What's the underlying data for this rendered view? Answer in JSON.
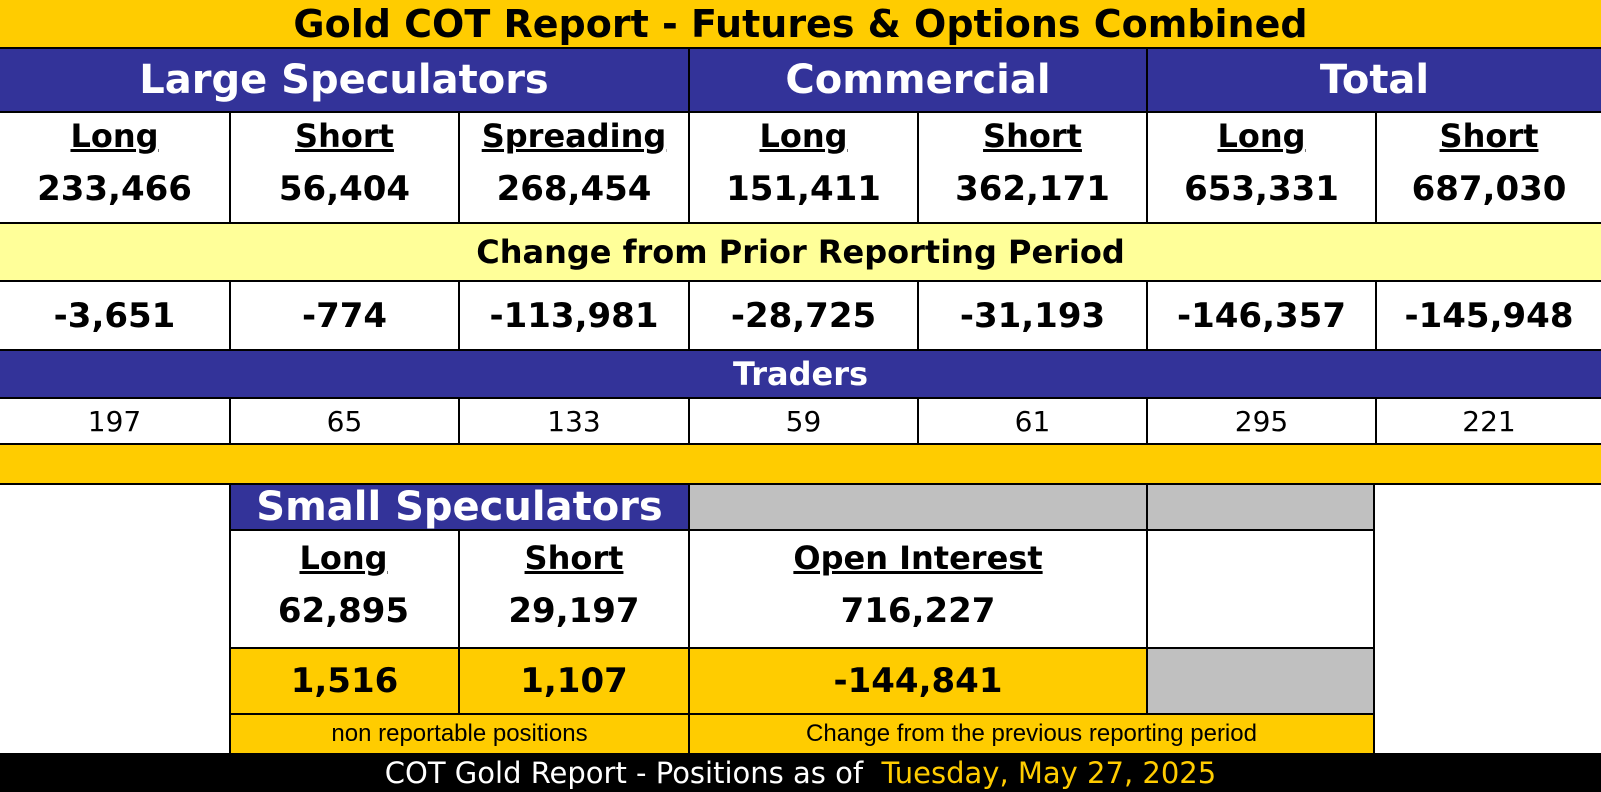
{
  "title": "Gold COT Report - Futures & Options Combined",
  "groups": {
    "large": "Large Speculators",
    "commercial": "Commercial",
    "total": "Total"
  },
  "columns": [
    {
      "label": "Long",
      "value": "233,466",
      "change": "-3,651",
      "traders": "197"
    },
    {
      "label": "Short",
      "value": "56,404",
      "change": "-774",
      "traders": "65"
    },
    {
      "label": "Spreading",
      "value": "268,454",
      "change": "-113,981",
      "traders": "133"
    },
    {
      "label": "Long",
      "value": "151,411",
      "change": "-28,725",
      "traders": "59"
    },
    {
      "label": "Short",
      "value": "362,171",
      "change": "-31,193",
      "traders": "61"
    },
    {
      "label": "Long",
      "value": "653,331",
      "change": "-146,357",
      "traders": "295"
    },
    {
      "label": "Short",
      "value": "687,030",
      "change": "-145,948",
      "traders": "221"
    }
  ],
  "change_heading": "Change from Prior Reporting Period",
  "traders_heading": "Traders",
  "small": {
    "title": "Small Speculators",
    "long_label": "Long",
    "long_value": "62,895",
    "long_change": "1,516",
    "short_label": "Short",
    "short_value": "29,197",
    "short_change": "1,107",
    "oi_label": "Open Interest",
    "oi_value": "716,227",
    "oi_change": "-144,841",
    "note_left": "non reportable positions",
    "note_right": "Change from the previous reporting period"
  },
  "footer": {
    "prefix": "COT Gold Report - Positions as of",
    "date": "Tuesday, May 27, 2025"
  },
  "colors": {
    "gold": "#ffcc00",
    "navy": "#333399",
    "pale_yellow": "#ffff99",
    "gray": "#c0c0c0",
    "black": "#000000"
  }
}
